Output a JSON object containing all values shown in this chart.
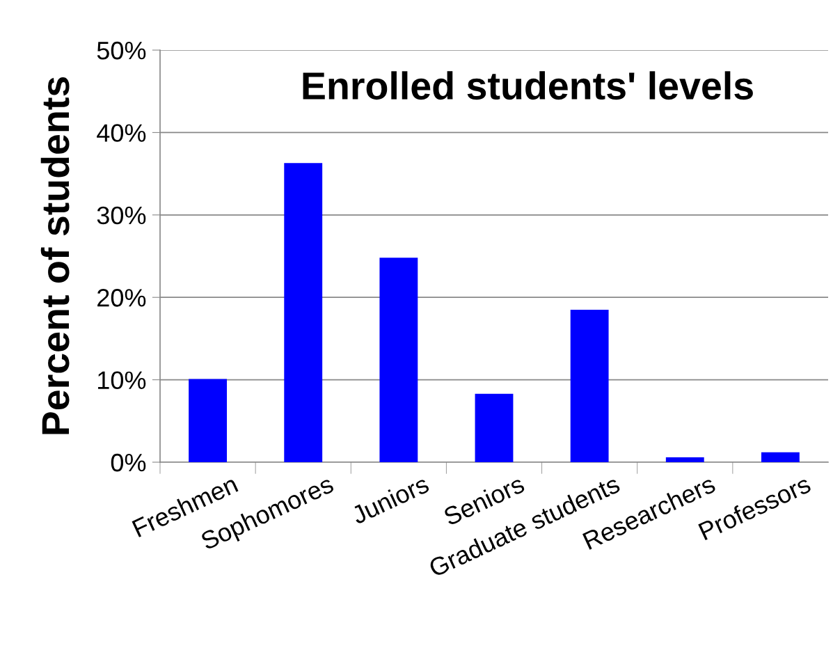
{
  "chart_data": {
    "type": "bar",
    "title": "Enrolled students' levels",
    "ylabel": "Percent of students",
    "categories": [
      "Freshmen",
      "Sophomores",
      "Juniors",
      "Seniors",
      "Graduate students",
      "Researchers",
      "Professors"
    ],
    "values": [
      10.1,
      36.3,
      24.8,
      8.3,
      18.5,
      0.6,
      1.2
    ],
    "color": "#0000ff",
    "ylim": [
      0,
      50
    ],
    "yticks": [
      {
        "value": 0,
        "label": "0%"
      },
      {
        "value": 10,
        "label": "10%"
      },
      {
        "value": 20,
        "label": "20%"
      },
      {
        "value": 30,
        "label": "30%"
      },
      {
        "value": 40,
        "label": "40%"
      },
      {
        "value": 50,
        "label": "50%"
      }
    ],
    "grid": "y"
  }
}
